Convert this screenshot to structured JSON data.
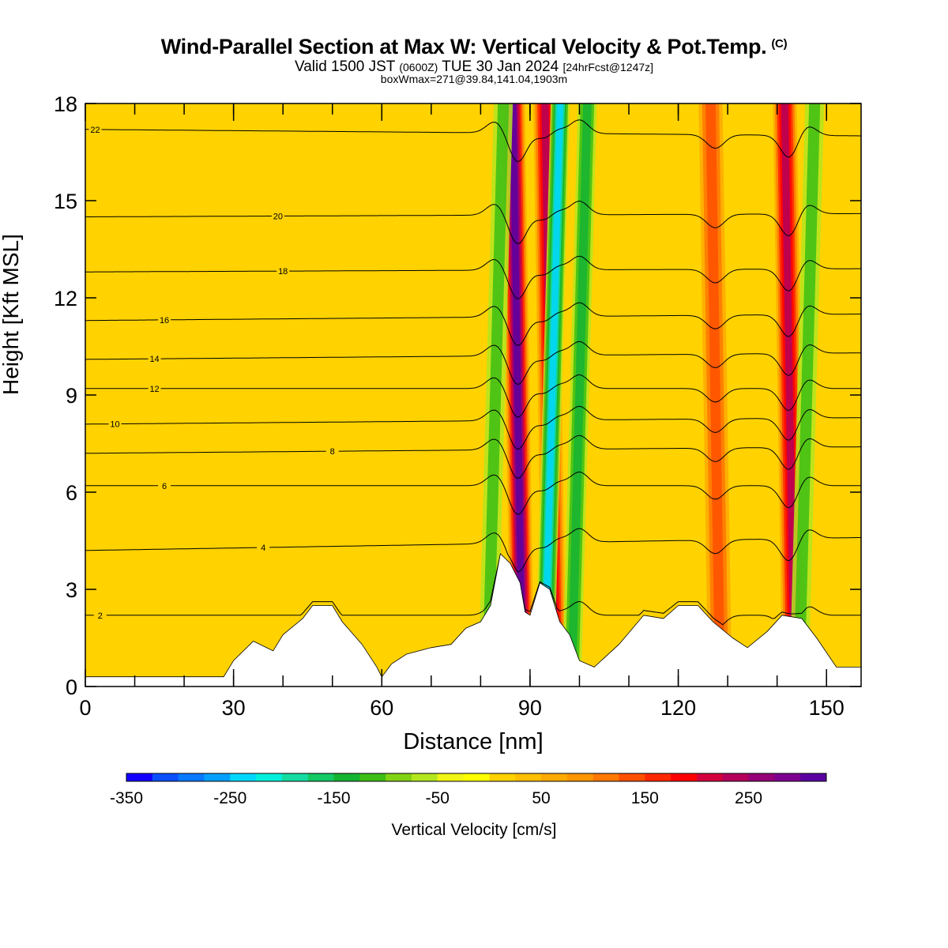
{
  "title": {
    "main": "Wind-Parallel Section at Max W: Vertical Velocity & Pot.Temp.",
    "copyright_tag": "(C)",
    "valid_prefix": "Valid 1500 JST",
    "valid_utc": "(0600Z)",
    "valid_date": "TUE 30 Jan 2024",
    "forecast_tag": "[24hrFcst@1247z]",
    "box_info": "boxWmax=271@39.84,141.04,1903m"
  },
  "chart_data": {
    "type": "heatmap",
    "xlabel": "Distance [nm]",
    "ylabel": "Height [Kft MSL]",
    "xlim": [
      0,
      157
    ],
    "ylim": [
      0,
      18
    ],
    "x_ticks": [
      0,
      30,
      60,
      90,
      120,
      150
    ],
    "y_ticks": [
      0,
      3,
      6,
      9,
      12,
      15,
      18
    ],
    "colorbar": {
      "label": "Vertical Velocity [cm/s]",
      "min": -350,
      "max": 325,
      "step": 25,
      "tick_values": [
        -350,
        -250,
        -150,
        -50,
        50,
        150,
        250
      ],
      "colors": [
        "#1400ff",
        "#0a50ff",
        "#0a78ff",
        "#05a0ff",
        "#00d7ff",
        "#00f0dc",
        "#14dca0",
        "#14c864",
        "#14b432",
        "#3cbe14",
        "#82d214",
        "#b4e61e",
        "#f0f514",
        "#ffff00",
        "#ffd200",
        "#ffbe00",
        "#ffaa00",
        "#ff9600",
        "#ff7800",
        "#ff5000",
        "#ff2800",
        "#ff0000",
        "#d2003c",
        "#b4005a",
        "#960078",
        "#7d0091",
        "#5a00a0"
      ]
    },
    "updrafts": [
      {
        "x": 87.5,
        "w": 300
      },
      {
        "x": 94.0,
        "w": 240
      },
      {
        "x": 142.5,
        "w": 240
      },
      {
        "x": 127.5,
        "w": 140
      }
    ],
    "downdrafts": [
      {
        "x": 94.5,
        "w": -230
      },
      {
        "x": 100.0,
        "w": -140
      },
      {
        "x": 83.0,
        "w": -120
      },
      {
        "x": 146.0,
        "w": -110
      }
    ],
    "terrain": [
      [
        0,
        0.3
      ],
      [
        28,
        0.3
      ],
      [
        30,
        0.8
      ],
      [
        34,
        1.4
      ],
      [
        38,
        1.1
      ],
      [
        40,
        1.6
      ],
      [
        44,
        2.1
      ],
      [
        46,
        2.5
      ],
      [
        50,
        2.5
      ],
      [
        52,
        2.0
      ],
      [
        56,
        1.3
      ],
      [
        59,
        0.6
      ],
      [
        60,
        0.3
      ],
      [
        62,
        0.7
      ],
      [
        65,
        1.0
      ],
      [
        70,
        1.2
      ],
      [
        74,
        1.3
      ],
      [
        77,
        1.8
      ],
      [
        80,
        2.0
      ],
      [
        82,
        2.5
      ],
      [
        84,
        4.1
      ],
      [
        86,
        3.8
      ],
      [
        88,
        3.2
      ],
      [
        89,
        2.3
      ],
      [
        90,
        2.2
      ],
      [
        92,
        3.2
      ],
      [
        94,
        3.0
      ],
      [
        96,
        2.0
      ],
      [
        98,
        1.6
      ],
      [
        100,
        0.8
      ],
      [
        103,
        0.6
      ],
      [
        108,
        1.3
      ],
      [
        113,
        2.2
      ],
      [
        117,
        2.1
      ],
      [
        120,
        2.5
      ],
      [
        124,
        2.5
      ],
      [
        127,
        2.0
      ],
      [
        131,
        1.5
      ],
      [
        134,
        1.2
      ],
      [
        138,
        1.7
      ],
      [
        141,
        2.2
      ],
      [
        145,
        2.1
      ],
      [
        148,
        1.5
      ],
      [
        152,
        0.6
      ],
      [
        157,
        0.6
      ]
    ],
    "contours": [
      {
        "value": 2,
        "label_x": 3,
        "h_left": 2.2,
        "h_right": 2.2
      },
      {
        "value": 4,
        "label_x": 36,
        "h_left": 4.2,
        "h_right": 4.6
      },
      {
        "value": 6,
        "label_x": 16,
        "h_left": 6.2,
        "h_right": 6.2
      },
      {
        "value": 8,
        "label_x": 50,
        "h_left": 7.2,
        "h_right": 7.4
      },
      {
        "value": 10,
        "label_x": 6,
        "h_left": 8.1,
        "h_right": 8.3
      },
      {
        "value": 12,
        "label_x": 14,
        "h_left": 9.2,
        "h_right": 9.2
      },
      {
        "value": 14,
        "label_x": 14,
        "h_left": 10.1,
        "h_right": 10.3
      },
      {
        "value": 16,
        "label_x": 16,
        "h_left": 11.3,
        "h_right": 11.5
      },
      {
        "value": 18,
        "label_x": 40,
        "h_left": 12.8,
        "h_right": 12.9
      },
      {
        "value": 20,
        "label_x": 39,
        "h_left": 14.5,
        "h_right": 14.6
      },
      {
        "value": 22,
        "label_x": 2,
        "h_left": 17.2,
        "h_right": 17.0
      }
    ]
  }
}
